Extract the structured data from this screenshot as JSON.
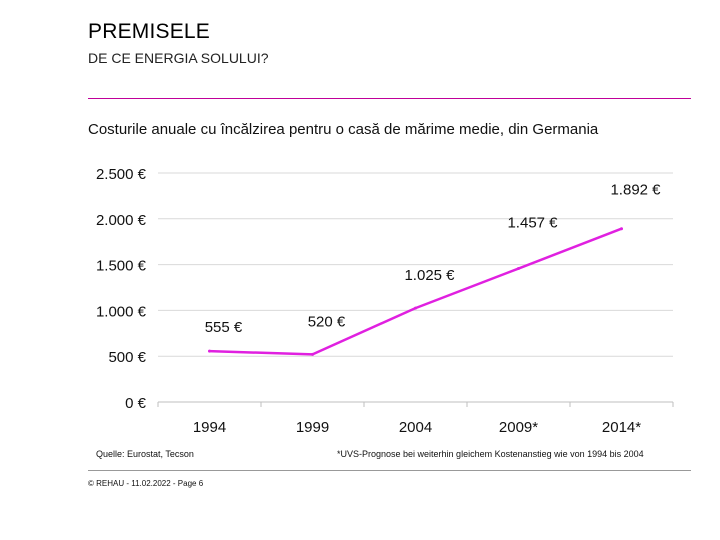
{
  "header": {
    "title": "PREMISELE",
    "subtitle": "DE CE ENERGIA SOLULUI?"
  },
  "colors": {
    "accent": "#e020e0",
    "rule": "#c0009a",
    "grid": "#d9d9d9",
    "axis": "#bfbfbf"
  },
  "chart_data": {
    "type": "line",
    "title": "Costurile anuale cu încălzirea pentru o casă de mărime medie, din Germania",
    "categories": [
      "1994",
      "1999",
      "2004",
      "2009*",
      "2014*"
    ],
    "values": [
      555,
      520,
      1025,
      1457,
      1892
    ],
    "data_labels": [
      "555 €",
      "520 €",
      "1.025 €",
      "1.457 €",
      "1.892 €"
    ],
    "ylim": [
      0,
      2500
    ],
    "yticks": [
      0,
      500,
      1000,
      1500,
      2000,
      2500
    ],
    "ytick_labels": [
      "0 €",
      "500 €",
      "1.000 €",
      "1.500 €",
      "2.000 €",
      "2.500 €"
    ],
    "xlabel": "",
    "ylabel": "",
    "grid": true
  },
  "notes": {
    "source": "Quelle: Eurostat, Tecson",
    "footnote": "*UVS-Prognose bei weiterhin gleichem Kostenanstieg wie von 1994 bis 2004"
  },
  "footer": {
    "text": "© REHAU - 11.02.2022 - Page 6"
  }
}
